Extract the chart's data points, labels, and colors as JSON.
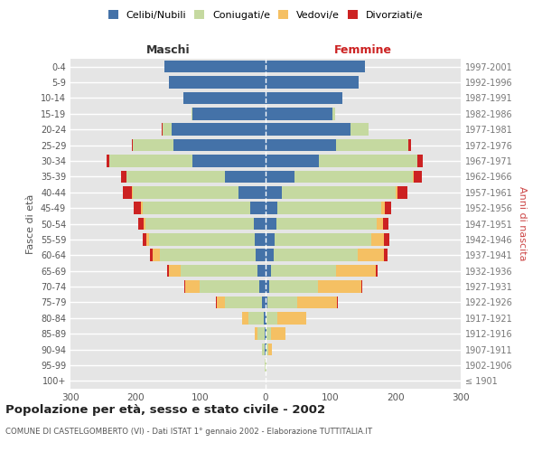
{
  "age_groups": [
    "100+",
    "95-99",
    "90-94",
    "85-89",
    "80-84",
    "75-79",
    "70-74",
    "65-69",
    "60-64",
    "55-59",
    "50-54",
    "45-49",
    "40-44",
    "35-39",
    "30-34",
    "25-29",
    "20-24",
    "15-19",
    "10-14",
    "5-9",
    "0-4"
  ],
  "birth_years": [
    "≤ 1901",
    "1902-1906",
    "1907-1911",
    "1912-1916",
    "1917-1921",
    "1922-1926",
    "1927-1931",
    "1932-1936",
    "1937-1941",
    "1942-1946",
    "1947-1951",
    "1952-1956",
    "1957-1961",
    "1962-1966",
    "1967-1971",
    "1972-1976",
    "1977-1981",
    "1982-1986",
    "1987-1991",
    "1992-1996",
    "1997-2001"
  ],
  "maschi": {
    "celibi": [
      0,
      0,
      1,
      2,
      3,
      5,
      10,
      13,
      15,
      17,
      18,
      24,
      42,
      62,
      112,
      142,
      145,
      112,
      127,
      148,
      155
    ],
    "coniugati": [
      0,
      1,
      4,
      11,
      24,
      57,
      92,
      117,
      147,
      162,
      167,
      165,
      162,
      152,
      128,
      62,
      14,
      2,
      0,
      0,
      0
    ],
    "vedovi": [
      0,
      0,
      1,
      3,
      9,
      13,
      22,
      19,
      11,
      5,
      3,
      2,
      1,
      0,
      0,
      0,
      0,
      0,
      0,
      0,
      0
    ],
    "divorziati": [
      0,
      0,
      0,
      0,
      0,
      1,
      1,
      2,
      5,
      5,
      8,
      12,
      15,
      8,
      4,
      2,
      1,
      0,
      0,
      0,
      0
    ]
  },
  "femmine": {
    "nubili": [
      0,
      0,
      1,
      1,
      2,
      3,
      5,
      8,
      12,
      14,
      16,
      18,
      25,
      45,
      82,
      108,
      130,
      103,
      118,
      143,
      153
    ],
    "coniugate": [
      0,
      1,
      3,
      8,
      16,
      45,
      75,
      100,
      130,
      148,
      155,
      160,
      175,
      182,
      152,
      112,
      28,
      4,
      0,
      0,
      0
    ],
    "vedove": [
      0,
      1,
      6,
      22,
      45,
      62,
      67,
      62,
      40,
      20,
      10,
      5,
      3,
      1,
      0,
      0,
      0,
      0,
      0,
      0,
      0
    ],
    "divorziate": [
      0,
      0,
      0,
      0,
      0,
      1,
      1,
      2,
      6,
      8,
      8,
      10,
      15,
      12,
      8,
      4,
      1,
      0,
      0,
      0,
      0
    ]
  },
  "colors": {
    "celibi": "#4472a8",
    "coniugati": "#c5d9a0",
    "vedovi": "#f5c063",
    "divorziati": "#cc2222"
  },
  "xlim": 300,
  "title": "Popolazione per età, sesso e stato civile - 2002",
  "subtitle": "COMUNE DI CASTELGOMBERTO (VI) - Dati ISTAT 1° gennaio 2002 - Elaborazione TUTTITALIA.IT",
  "ylabel_left": "Fasce di età",
  "ylabel_right": "Anni di nascita",
  "xlabel_maschi": "Maschi",
  "xlabel_femmine": "Femmine"
}
